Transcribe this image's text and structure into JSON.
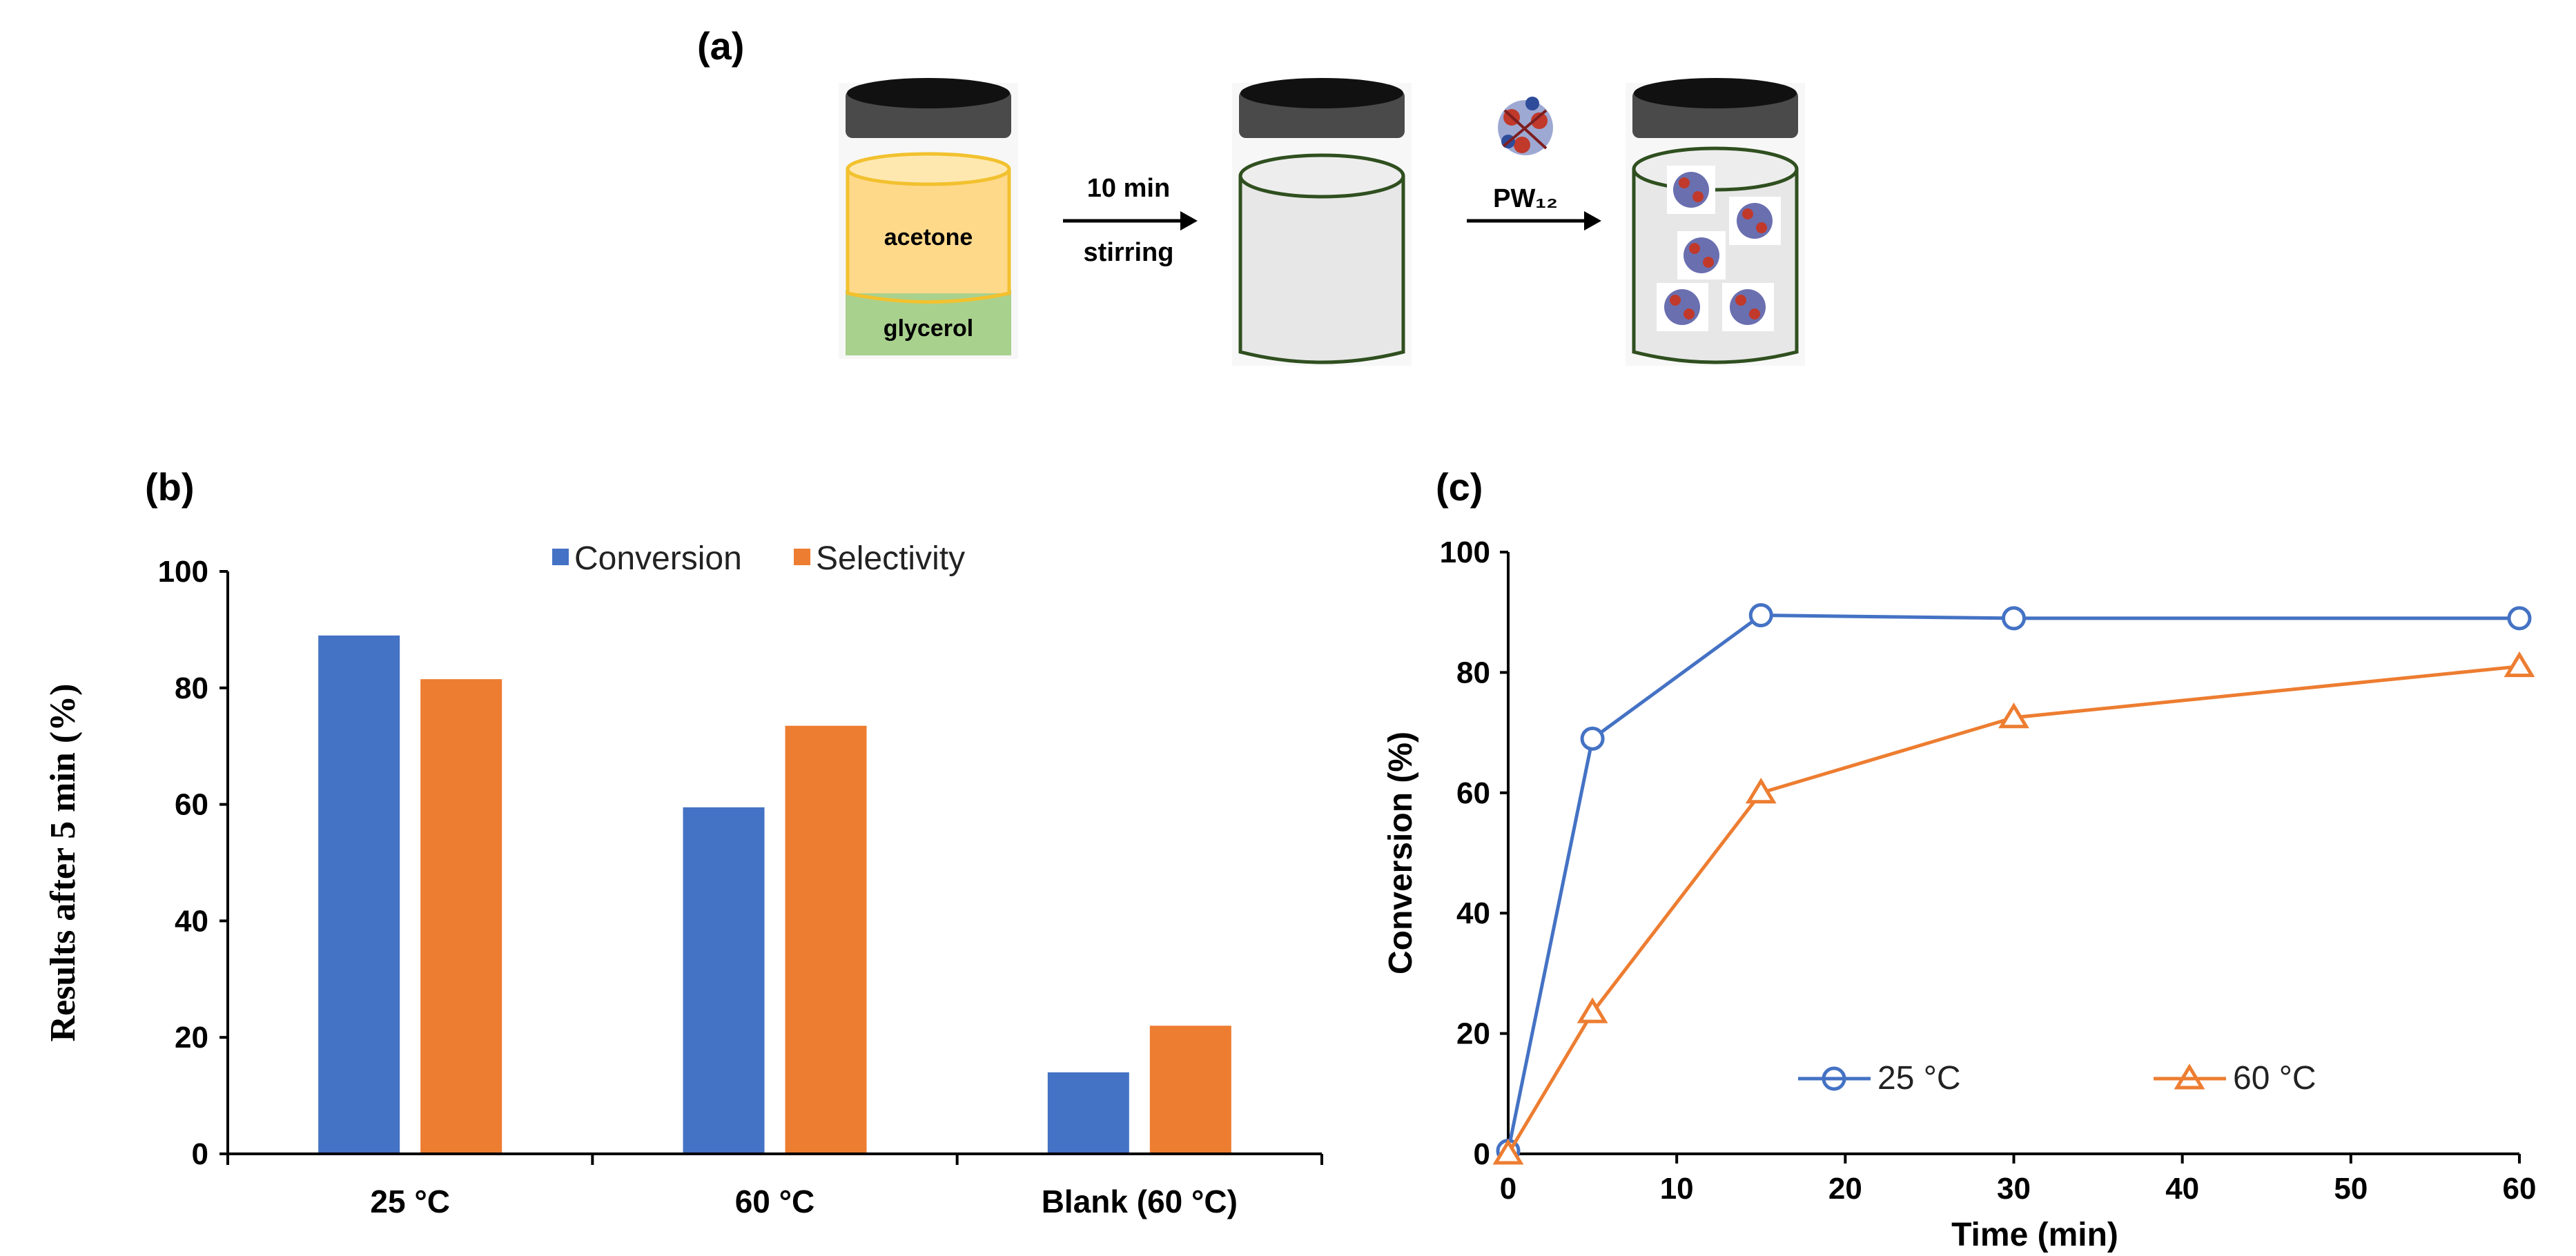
{
  "panels": {
    "a": "(a)",
    "b": "(b)",
    "c": "(c)"
  },
  "scheme": {
    "acetone_label": "acetone",
    "glycerol_label": "glycerol",
    "step1_top": "10 min",
    "step1_bottom": "stirring",
    "catalyst_label": "PW₁₂"
  },
  "colors": {
    "blue": "#4472C4",
    "orange": "#ED7D31",
    "acetone": "#FFD98A",
    "acetone_border": "#F2C12E",
    "glycerol": "#A9D18E",
    "jar_outline": "#2F4F1F",
    "jar_fill": "#E7E7E7",
    "cap": "#4A4A4A"
  },
  "chart_data": [
    {
      "id": "b",
      "type": "bar",
      "title": "",
      "categories": [
        "25 °C",
        "60 °C",
        "Blank (60 °C)"
      ],
      "series": [
        {
          "name": "Conversion",
          "values": [
            89,
            59.5,
            14
          ]
        },
        {
          "name": "Selectivity",
          "values": [
            81.5,
            73.5,
            22
          ]
        }
      ],
      "ylabel": "Results after 5 min (%)",
      "xlabel": "",
      "ylim": [
        0,
        100
      ],
      "yticks": [
        0,
        20,
        40,
        60,
        80,
        100
      ],
      "legend_position": "top-center"
    },
    {
      "id": "c",
      "type": "line",
      "title": "",
      "xlabel": "Time (min)",
      "ylabel": "Conversion (%)",
      "xlim": [
        0,
        60
      ],
      "ylim": [
        0,
        100
      ],
      "xticks": [
        0,
        10,
        20,
        30,
        40,
        50,
        60
      ],
      "yticks": [
        0,
        20,
        40,
        60,
        80,
        100
      ],
      "series": [
        {
          "name": "25 °C",
          "marker": "circle",
          "x": [
            0,
            5,
            15,
            30,
            60
          ],
          "y": [
            0.5,
            69,
            89.5,
            89,
            89
          ]
        },
        {
          "name": "60 °C",
          "marker": "triangle",
          "x": [
            0,
            5,
            15,
            30,
            60
          ],
          "y": [
            0,
            23.5,
            60,
            72.5,
            81
          ]
        }
      ],
      "legend_position": "bottom-right"
    }
  ]
}
